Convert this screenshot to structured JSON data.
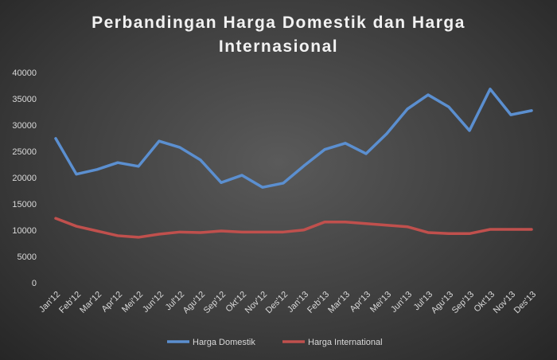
{
  "chart_data": {
    "type": "line",
    "title": "Perbandingan Harga Domestik dan Harga Internasional",
    "categories": [
      "Jan'12",
      "Feb'12",
      "Mar'12",
      "Apr'12",
      "Mei'12",
      "Jun'12",
      "Jul'12",
      "Agu'12",
      "Sep'12",
      "Okt'12",
      "Nov'12",
      "Des'12",
      "Jan'13",
      "Feb'13",
      "Mar'13",
      "Apr'13",
      "Mei'13",
      "Jun'13",
      "Jul'13",
      "Agu'13",
      "Sep'13",
      "Okt'13",
      "Nov'13",
      "Des'13"
    ],
    "series": [
      {
        "name": "Harga Domestik",
        "color": "#5b8fd0",
        "values": [
          27600,
          20800,
          21700,
          23000,
          22300,
          27100,
          25900,
          23500,
          19200,
          20600,
          18300,
          19100,
          22400,
          25500,
          26700,
          24700,
          28500,
          33200,
          35900,
          33600,
          29100,
          37000,
          32100,
          32900
        ]
      },
      {
        "name": "Harga International",
        "color": "#c0504d",
        "values": [
          12400,
          10900,
          10000,
          9100,
          8800,
          9400,
          9800,
          9700,
          10000,
          9800,
          9800,
          9800,
          10200,
          11700,
          11700,
          11400,
          11100,
          10800,
          9700,
          9500,
          9500,
          10300,
          10300,
          10300
        ]
      }
    ],
    "ylim": [
      0,
      40000
    ],
    "yticks": [
      0,
      5000,
      10000,
      15000,
      20000,
      25000,
      30000,
      35000,
      40000
    ],
    "grid": false,
    "legend": "bottom"
  }
}
